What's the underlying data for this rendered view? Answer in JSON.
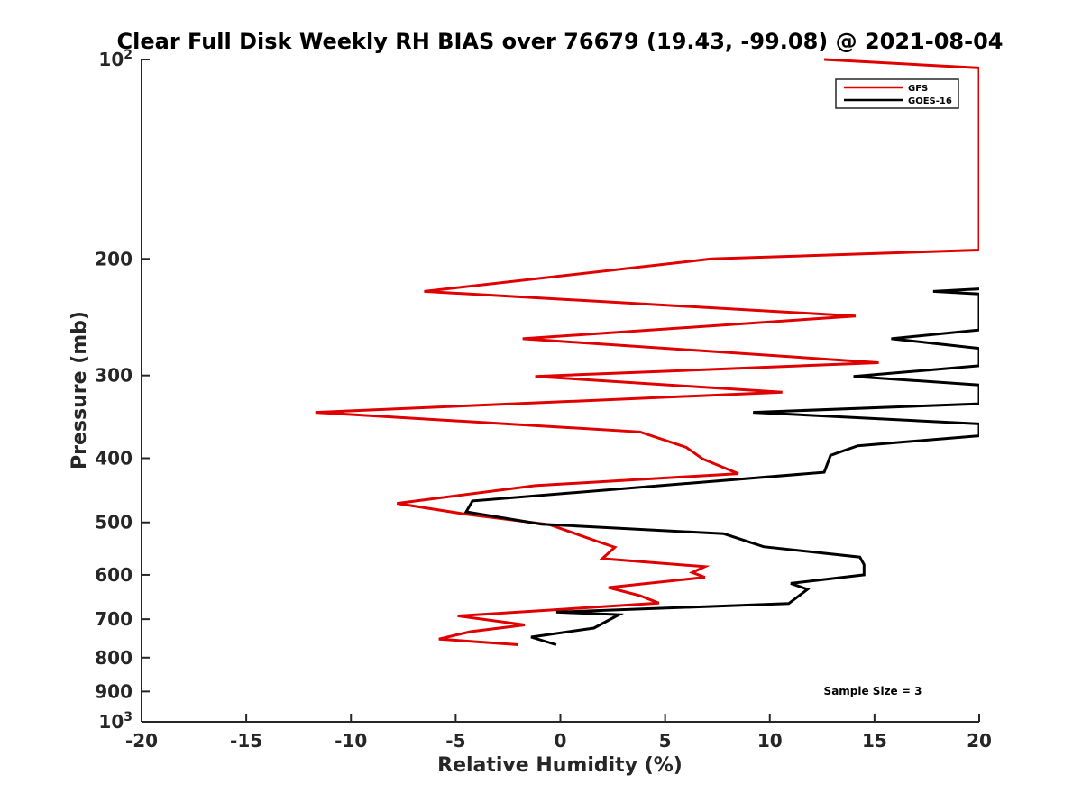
{
  "chart_data": {
    "type": "line",
    "title": "Clear Full Disk Weekly RH BIAS over 76679 (19.43, -99.08) @ 2021-08-04",
    "xlabel": "Relative Humidity (%)",
    "ylabel": "Pressure (mb)",
    "xlim": [
      -20,
      20
    ],
    "ylim": [
      100,
      1000
    ],
    "y_scale": "log",
    "y_reversed": true,
    "grid": false,
    "legend_position": "top-right",
    "x_ticks": [
      "-20",
      "-15",
      "-10",
      "-5",
      "0",
      "5",
      "10",
      "15",
      "20"
    ],
    "y_ticks": [
      {
        "value": 100,
        "label": "10",
        "sup": "2"
      },
      {
        "value": 200,
        "label": "200",
        "sup": ""
      },
      {
        "value": 300,
        "label": "300",
        "sup": ""
      },
      {
        "value": 400,
        "label": "400",
        "sup": ""
      },
      {
        "value": 500,
        "label": "500",
        "sup": ""
      },
      {
        "value": 600,
        "label": "600",
        "sup": ""
      },
      {
        "value": 700,
        "label": "700",
        "sup": ""
      },
      {
        "value": 800,
        "label": "800",
        "sup": ""
      },
      {
        "value": 900,
        "label": "900",
        "sup": ""
      },
      {
        "value": 1000,
        "label": "10",
        "sup": "3"
      }
    ],
    "annotation": "Sample Size = 3",
    "series": [
      {
        "name": "GFS",
        "color": "#e00000",
        "points": [
          [
            12.6,
            100
          ],
          [
            20,
            103
          ],
          [
            20,
            194
          ],
          [
            7.2,
            200
          ],
          [
            -6.5,
            224
          ],
          [
            14.1,
            244
          ],
          [
            -1.8,
            264
          ],
          [
            15.2,
            287
          ],
          [
            -1.2,
            301
          ],
          [
            10.6,
            318
          ],
          [
            -11.7,
            341
          ],
          [
            3.8,
            365
          ],
          [
            6,
            385
          ],
          [
            6.8,
            401
          ],
          [
            8.5,
            422
          ],
          [
            -1.2,
            440
          ],
          [
            -7.8,
            468
          ],
          [
            -4.5,
            486
          ],
          [
            -0.5,
            504
          ],
          [
            1.6,
            532
          ],
          [
            2.6,
            545
          ],
          [
            2,
            567
          ],
          [
            6.9,
            583
          ],
          [
            6.3,
            595
          ],
          [
            6.9,
            605
          ],
          [
            2.3,
            627
          ],
          [
            3.8,
            645
          ],
          [
            4.7,
            662
          ],
          [
            -4.9,
            692
          ],
          [
            -1.7,
            714
          ],
          [
            -4.3,
            731
          ],
          [
            -5.8,
            750
          ],
          [
            -2,
            765
          ]
        ]
      },
      {
        "name": "GOES-16",
        "color": "#000000",
        "points": [
          [
            20,
            222
          ],
          [
            17.8,
            224
          ],
          [
            20,
            226
          ],
          [
            20,
            256
          ],
          [
            15.8,
            264
          ],
          [
            20,
            273
          ],
          [
            20,
            290
          ],
          [
            14,
            301
          ],
          [
            20,
            310
          ],
          [
            20,
            331
          ],
          [
            9.2,
            341
          ],
          [
            20,
            355
          ],
          [
            20,
            370
          ],
          [
            14.2,
            383
          ],
          [
            12.9,
            396
          ],
          [
            12.6,
            420
          ],
          [
            -4.2,
            464
          ],
          [
            -4.5,
            482
          ],
          [
            -0.9,
            503
          ],
          [
            7.8,
            520
          ],
          [
            9.7,
            544
          ],
          [
            14.3,
            564
          ],
          [
            14.5,
            579
          ],
          [
            14.5,
            600
          ],
          [
            11,
            618
          ],
          [
            11.8,
            631
          ],
          [
            10.9,
            663
          ],
          [
            -0.2,
            683
          ],
          [
            2.8,
            689
          ],
          [
            1.6,
            722
          ],
          [
            -1.4,
            745
          ],
          [
            -0.2,
            765
          ]
        ]
      }
    ]
  }
}
